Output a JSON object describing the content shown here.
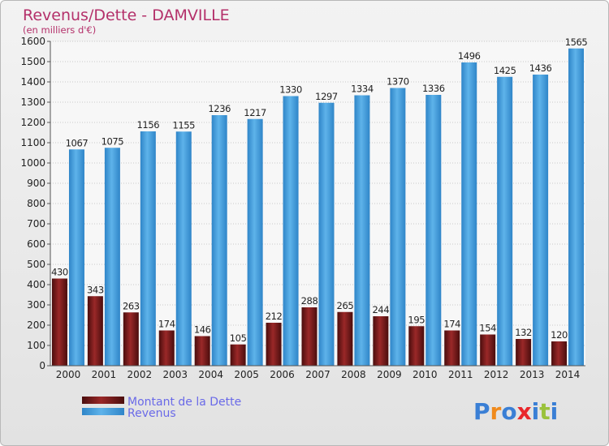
{
  "chart_data": {
    "type": "bar",
    "title": "Revenus/Dette - DAMVILLE",
    "subtitle": "(en milliers d'€)",
    "categories": [
      "2000",
      "2001",
      "2002",
      "2003",
      "2004",
      "2005",
      "2006",
      "2007",
      "2008",
      "2009",
      "2010",
      "2011",
      "2012",
      "2013",
      "2014"
    ],
    "series": [
      {
        "name": "Montant de la Dette",
        "color": "#7a1a1a",
        "values": [
          430,
          343,
          263,
          174,
          146,
          105,
          212,
          288,
          265,
          244,
          195,
          174,
          154,
          132,
          120
        ]
      },
      {
        "name": "Revenus",
        "color": "#4da3e0",
        "values": [
          1067,
          1075,
          1156,
          1155,
          1236,
          1217,
          1330,
          1297,
          1334,
          1370,
          1336,
          1496,
          1425,
          1436,
          1565
        ]
      }
    ],
    "ylim": [
      0,
      1600
    ],
    "yticks": [
      0,
      100,
      200,
      300,
      400,
      500,
      600,
      700,
      800,
      900,
      1000,
      1100,
      1200,
      1300,
      1400,
      1500,
      1600
    ],
    "grid": true,
    "legend_position": "bottom-left"
  },
  "brand": {
    "letters": [
      "P",
      "r",
      "o",
      "x",
      "i",
      "t",
      "i"
    ],
    "colors": [
      "#3a7fd5",
      "#f08a1c",
      "#3a7fd5",
      "#e9262b",
      "#3a7fd5",
      "#9bc23c",
      "#3a7fd5"
    ]
  }
}
